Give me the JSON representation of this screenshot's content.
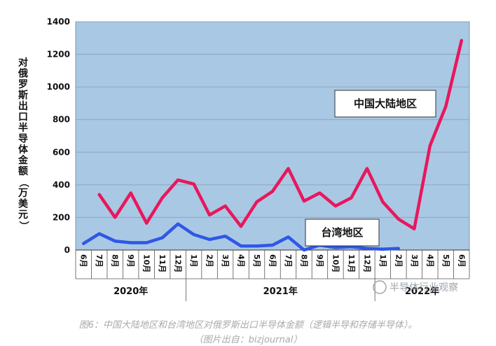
{
  "chart_data": {
    "type": "line",
    "ylabel": "对俄罗斯出口半导体金额（万美元）",
    "ylim": [
      0,
      1400
    ],
    "yticks": [
      0,
      200,
      400,
      600,
      800,
      1000,
      1200,
      1400
    ],
    "grid": "horizontal",
    "x": [
      "6月",
      "7月",
      "8月",
      "9月",
      "10月",
      "11月",
      "12月",
      "1月",
      "2月",
      "3月",
      "4月",
      "5月",
      "6月",
      "7月",
      "8月",
      "9月",
      "10月",
      "11月",
      "12月",
      "1月",
      "2月",
      "3月",
      "4月",
      "5月",
      "6月"
    ],
    "year_groups": [
      {
        "label": "2020年",
        "start": 0,
        "end": 6
      },
      {
        "label": "2021年",
        "start": 7,
        "end": 18
      },
      {
        "label": "2022年",
        "start": 19,
        "end": 24
      }
    ],
    "series": [
      {
        "name": "中国大陆地区",
        "color": "#e8175d",
        "values": [
          null,
          340,
          200,
          350,
          165,
          320,
          430,
          405,
          215,
          270,
          145,
          295,
          360,
          500,
          300,
          350,
          270,
          320,
          500,
          295,
          190,
          130,
          640,
          880,
          1285
        ]
      },
      {
        "name": "台湾地区",
        "color": "#2f57e6",
        "values": [
          40,
          100,
          55,
          45,
          45,
          75,
          160,
          95,
          65,
          85,
          25,
          25,
          30,
          80,
          0,
          30,
          15,
          20,
          10,
          5,
          10,
          null,
          null,
          null,
          null
        ]
      }
    ],
    "plot_bg": "#a9c8e4"
  },
  "caption": {
    "line1": "图6：中国大陆地区和台湾地区对俄罗斯出口半导体金额（逻辑半导和存储半导体）。",
    "line2": "（图片出自：bizjournal）"
  },
  "watermark": "半导体行业观察"
}
